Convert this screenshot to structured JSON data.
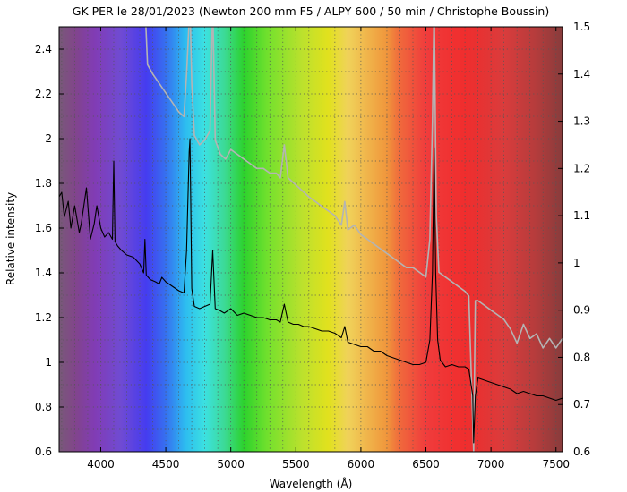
{
  "chart_data": {
    "type": "line",
    "title": "GK PER le 28/01/2023 (Newton 200 mm F5 / ALPY 600 / 50 min / Christophe Boussin)",
    "xlabel": "Wavelength (Å)",
    "ylabel": "Relative intensity",
    "xlim": [
      3680,
      7550
    ],
    "ylim": [
      0.6,
      2.5
    ],
    "y2lim": [
      0.6,
      1.5
    ],
    "grid": true,
    "legend": "none",
    "xticks": [
      "4000",
      "4500",
      "5000",
      "5500",
      "6000",
      "6500",
      "7000",
      "7500"
    ],
    "yticks": [
      "0.6",
      "0.8",
      "1",
      "1.2",
      "1.4",
      "1.6",
      "1.8",
      "2",
      "2.2",
      "2.4"
    ],
    "y2ticks": [
      "0.6",
      "0.7",
      "0.8",
      "0.9",
      "1",
      "1.1",
      "1.2",
      "1.3",
      "1.4",
      "1.5"
    ],
    "background": "visible-spectrum color gradient",
    "series": [
      {
        "axis": "left",
        "color": "#000000",
        "x": [
          3680,
          3700,
          3720,
          3750,
          3770,
          3800,
          3835,
          3850,
          3890,
          3920,
          3950,
          3970,
          4000,
          4030,
          4060,
          4090,
          4100,
          4110,
          4130,
          4160,
          4200,
          4250,
          4300,
          4330,
          4340,
          4350,
          4380,
          4420,
          4450,
          4470,
          4500,
          4550,
          4600,
          4640,
          4660,
          4680,
          4686,
          4692,
          4700,
          4720,
          4760,
          4800,
          4840,
          4861,
          4880,
          4920,
          4950,
          5000,
          5050,
          5100,
          5150,
          5200,
          5250,
          5300,
          5350,
          5380,
          5411,
          5440,
          5480,
          5520,
          5560,
          5600,
          5650,
          5700,
          5750,
          5800,
          5850,
          5876,
          5900,
          5950,
          6000,
          6050,
          6100,
          6150,
          6200,
          6250,
          6300,
          6350,
          6400,
          6450,
          6500,
          6530,
          6550,
          6563,
          6575,
          6590,
          6610,
          6650,
          6700,
          6750,
          6800,
          6830,
          6860,
          6867,
          6880,
          6900,
          6950,
          7000,
          7050,
          7100,
          7150,
          7200,
          7250,
          7300,
          7350,
          7400,
          7450,
          7500,
          7550
        ],
        "y": [
          1.74,
          1.76,
          1.65,
          1.72,
          1.6,
          1.7,
          1.58,
          1.62,
          1.78,
          1.55,
          1.62,
          1.7,
          1.6,
          1.56,
          1.58,
          1.55,
          1.9,
          1.54,
          1.52,
          1.5,
          1.48,
          1.47,
          1.44,
          1.4,
          1.55,
          1.39,
          1.37,
          1.36,
          1.35,
          1.38,
          1.36,
          1.34,
          1.32,
          1.31,
          1.5,
          1.94,
          2.0,
          1.7,
          1.33,
          1.25,
          1.24,
          1.25,
          1.26,
          1.5,
          1.24,
          1.23,
          1.22,
          1.24,
          1.21,
          1.22,
          1.21,
          1.2,
          1.2,
          1.19,
          1.19,
          1.18,
          1.26,
          1.18,
          1.17,
          1.17,
          1.16,
          1.16,
          1.15,
          1.14,
          1.14,
          1.13,
          1.11,
          1.16,
          1.09,
          1.08,
          1.07,
          1.07,
          1.05,
          1.05,
          1.03,
          1.02,
          1.01,
          1.0,
          0.99,
          0.99,
          1.0,
          1.1,
          1.4,
          1.96,
          1.4,
          1.1,
          1.01,
          0.98,
          0.99,
          0.98,
          0.98,
          0.97,
          0.85,
          0.64,
          0.85,
          0.93,
          0.92,
          0.91,
          0.9,
          0.89,
          0.88,
          0.86,
          0.87,
          0.86,
          0.85,
          0.85,
          0.84,
          0.83,
          0.84
        ]
      },
      {
        "axis": "right",
        "color": "#b4b4b4",
        "x": [
          3680,
          3700,
          3750,
          3800,
          3850,
          3900,
          3950,
          4000,
          4050,
          4100,
          4150,
          4200,
          4250,
          4300,
          4340,
          4360,
          4400,
          4450,
          4500,
          4550,
          4600,
          4640,
          4660,
          4686,
          4700,
          4720,
          4760,
          4800,
          4840,
          4861,
          4880,
          4920,
          4960,
          5000,
          5050,
          5100,
          5150,
          5200,
          5250,
          5300,
          5350,
          5380,
          5411,
          5440,
          5480,
          5520,
          5560,
          5600,
          5650,
          5700,
          5750,
          5800,
          5850,
          5876,
          5900,
          5950,
          6000,
          6050,
          6100,
          6150,
          6200,
          6250,
          6300,
          6350,
          6400,
          6450,
          6500,
          6530,
          6550,
          6563,
          6580,
          6600,
          6650,
          6700,
          6750,
          6800,
          6830,
          6867,
          6880,
          6900,
          6950,
          7000,
          7050,
          7100,
          7150,
          7200,
          7250,
          7300,
          7350,
          7400,
          7450,
          7500,
          7550
        ],
        "y": [
          1.55,
          1.55,
          1.55,
          1.55,
          1.55,
          1.55,
          1.55,
          1.55,
          1.55,
          1.55,
          1.55,
          1.55,
          1.55,
          1.52,
          1.55,
          1.42,
          1.4,
          1.38,
          1.36,
          1.34,
          1.32,
          1.31,
          1.4,
          1.55,
          1.38,
          1.27,
          1.25,
          1.26,
          1.28,
          1.55,
          1.26,
          1.23,
          1.22,
          1.24,
          1.23,
          1.22,
          1.21,
          1.2,
          1.2,
          1.19,
          1.19,
          1.18,
          1.25,
          1.18,
          1.17,
          1.16,
          1.15,
          1.14,
          1.13,
          1.12,
          1.11,
          1.1,
          1.08,
          1.13,
          1.07,
          1.08,
          1.06,
          1.05,
          1.04,
          1.03,
          1.02,
          1.01,
          1.0,
          0.99,
          0.99,
          0.98,
          0.97,
          1.05,
          1.3,
          1.55,
          1.1,
          0.98,
          0.97,
          0.96,
          0.95,
          0.94,
          0.93,
          0.6,
          0.92,
          0.92,
          0.91,
          0.9,
          0.89,
          0.88,
          0.86,
          0.83,
          0.87,
          0.84,
          0.85,
          0.82,
          0.84,
          0.82,
          0.84
        ]
      }
    ]
  }
}
